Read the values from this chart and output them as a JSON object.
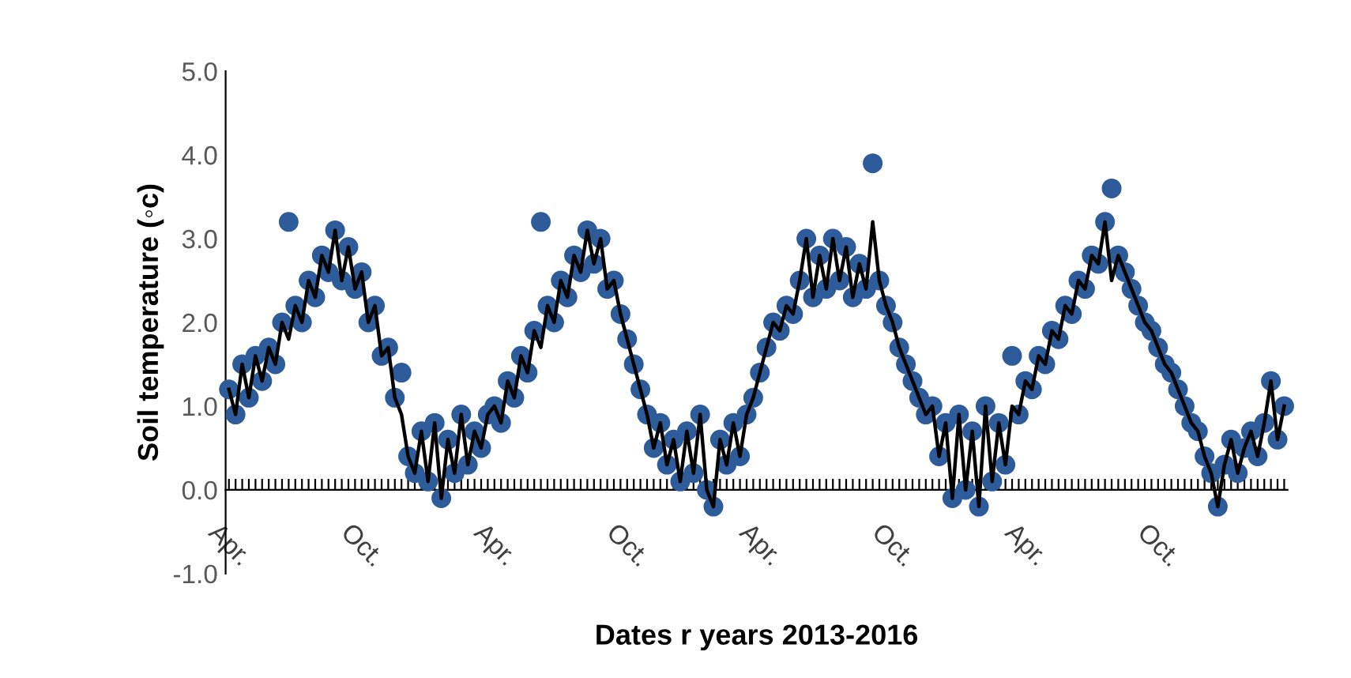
{
  "chart_data": {
    "type": "line",
    "xlabel": "Dates r years 2013-2016",
    "ylabel": "Soil temperature (◦c)",
    "categories": [
      "Apr.",
      null,
      null,
      null,
      null,
      null,
      null,
      null,
      null,
      null,
      null,
      null,
      null,
      null,
      null,
      null,
      null,
      null,
      null,
      null,
      "Oct.",
      null,
      null,
      null,
      null,
      null,
      null,
      null,
      null,
      null,
      null,
      null,
      null,
      null,
      null,
      null,
      null,
      null,
      null,
      null,
      "Apr.",
      null,
      null,
      null,
      null,
      null,
      null,
      null,
      null,
      null,
      null,
      null,
      null,
      null,
      null,
      null,
      null,
      null,
      null,
      null,
      "Oct.",
      null,
      null,
      null,
      null,
      null,
      null,
      null,
      null,
      null,
      null,
      null,
      null,
      null,
      null,
      null,
      null,
      null,
      null,
      null,
      "Apr.",
      null,
      null,
      null,
      null,
      null,
      null,
      null,
      null,
      null,
      null,
      null,
      null,
      null,
      null,
      null,
      null,
      null,
      null,
      null,
      "Oct.",
      null,
      null,
      null,
      null,
      null,
      null,
      null,
      null,
      null,
      null,
      null,
      null,
      null,
      null,
      null,
      null,
      null,
      null,
      null,
      "Apr.",
      null,
      null,
      null,
      null,
      null,
      null,
      null,
      null,
      null,
      null,
      null,
      null,
      null,
      null,
      null,
      null,
      null,
      null,
      null,
      "Oct.",
      null,
      null,
      null,
      null,
      null,
      null,
      null,
      null,
      null,
      null,
      null,
      null,
      null,
      null,
      null,
      null,
      null,
      null,
      null
    ],
    "series": [
      {
        "type": "scatter",
        "marker": "circle",
        "color": "#2e5c9a",
        "values": [
          1.2,
          0.9,
          1.5,
          1.1,
          1.6,
          1.3,
          1.7,
          1.5,
          2.0,
          3.2,
          2.2,
          2.0,
          2.5,
          2.3,
          2.8,
          2.6,
          3.1,
          2.5,
          2.9,
          2.4,
          2.6,
          2.0,
          2.2,
          1.6,
          1.7,
          1.1,
          1.4,
          0.4,
          0.2,
          0.7,
          0.1,
          0.8,
          -0.1,
          0.6,
          0.2,
          0.9,
          0.3,
          0.7,
          0.5,
          0.9,
          1.0,
          0.8,
          1.3,
          1.1,
          1.6,
          1.4,
          1.9,
          3.2,
          2.2,
          2.0,
          2.5,
          2.3,
          2.8,
          2.6,
          3.1,
          2.7,
          3.0,
          2.4,
          2.5,
          2.1,
          1.8,
          1.5,
          1.2,
          0.9,
          0.5,
          0.8,
          0.3,
          0.6,
          0.1,
          0.7,
          0.2,
          0.9,
          0.0,
          -0.2,
          0.6,
          0.3,
          0.8,
          0.4,
          0.9,
          1.1,
          1.4,
          1.7,
          2.0,
          1.9,
          2.2,
          2.1,
          2.5,
          3.0,
          2.3,
          2.8,
          2.4,
          3.0,
          2.5,
          2.9,
          2.3,
          2.7,
          2.4,
          3.9,
          2.5,
          2.2,
          2.0,
          1.7,
          1.5,
          1.3,
          1.1,
          0.9,
          1.0,
          0.4,
          0.8,
          -0.1,
          0.9,
          0.0,
          0.7,
          -0.2,
          1.0,
          0.1,
          0.8,
          0.3,
          1.6,
          0.9,
          1.3,
          1.2,
          1.6,
          1.5,
          1.9,
          1.8,
          2.2,
          2.1,
          2.5,
          2.4,
          2.8,
          2.7,
          3.2,
          3.6,
          2.8,
          2.6,
          2.4,
          2.2,
          2.0,
          1.9,
          1.7,
          1.5,
          1.4,
          1.2,
          1.0,
          0.8,
          0.7,
          0.4,
          0.2,
          -0.2,
          0.3,
          0.6,
          0.2,
          0.5,
          0.7,
          0.4,
          0.8,
          1.3,
          0.6,
          1.0
        ]
      },
      {
        "type": "line",
        "line_style": "solid",
        "color": "#000000",
        "values": [
          1.2,
          0.9,
          1.5,
          1.1,
          1.6,
          1.3,
          1.7,
          1.5,
          2.0,
          1.8,
          2.2,
          2.0,
          2.5,
          2.3,
          2.8,
          2.6,
          3.1,
          2.5,
          2.9,
          2.4,
          2.6,
          2.0,
          2.2,
          1.6,
          1.7,
          1.1,
          0.9,
          0.4,
          0.2,
          0.7,
          0.1,
          0.8,
          -0.1,
          0.6,
          0.2,
          0.9,
          0.3,
          0.7,
          0.5,
          0.9,
          1.0,
          0.8,
          1.3,
          1.1,
          1.6,
          1.4,
          1.9,
          1.7,
          2.2,
          2.0,
          2.5,
          2.3,
          2.8,
          2.6,
          3.1,
          2.7,
          3.0,
          2.4,
          2.5,
          2.1,
          1.8,
          1.5,
          1.2,
          0.9,
          0.5,
          0.8,
          0.3,
          0.6,
          0.1,
          0.7,
          0.2,
          0.9,
          0.0,
          -0.2,
          0.6,
          0.3,
          0.8,
          0.4,
          0.9,
          1.1,
          1.4,
          1.7,
          2.0,
          1.9,
          2.2,
          2.1,
          2.5,
          3.0,
          2.3,
          2.8,
          2.4,
          3.0,
          2.5,
          2.9,
          2.3,
          2.7,
          2.4,
          3.2,
          2.5,
          2.2,
          2.0,
          1.7,
          1.5,
          1.3,
          1.1,
          0.9,
          1.0,
          0.4,
          0.8,
          -0.1,
          0.9,
          0.0,
          0.7,
          -0.2,
          1.0,
          0.1,
          0.8,
          0.3,
          1.0,
          0.9,
          1.3,
          1.2,
          1.6,
          1.5,
          1.9,
          1.8,
          2.2,
          2.1,
          2.5,
          2.4,
          2.8,
          2.7,
          3.2,
          2.5,
          2.8,
          2.6,
          2.4,
          2.2,
          2.0,
          1.9,
          1.7,
          1.5,
          1.4,
          1.2,
          1.0,
          0.8,
          0.7,
          0.4,
          0.2,
          -0.2,
          0.3,
          0.6,
          0.2,
          0.5,
          0.7,
          0.4,
          0.8,
          1.3,
          0.6,
          1.0
        ]
      }
    ],
    "ylim": [
      -1.0,
      5.0
    ],
    "yticks": [
      {
        "value": -1.0,
        "label": "-1.0"
      },
      {
        "value": 0.0,
        "label": "0.0"
      },
      {
        "value": 1.0,
        "label": "1.0"
      },
      {
        "value": 2.0,
        "label": "2.0"
      },
      {
        "value": 3.0,
        "label": "3.0"
      },
      {
        "value": 4.0,
        "label": "4.0"
      },
      {
        "value": 5.0,
        "label": "5.0"
      }
    ],
    "grid": false
  }
}
